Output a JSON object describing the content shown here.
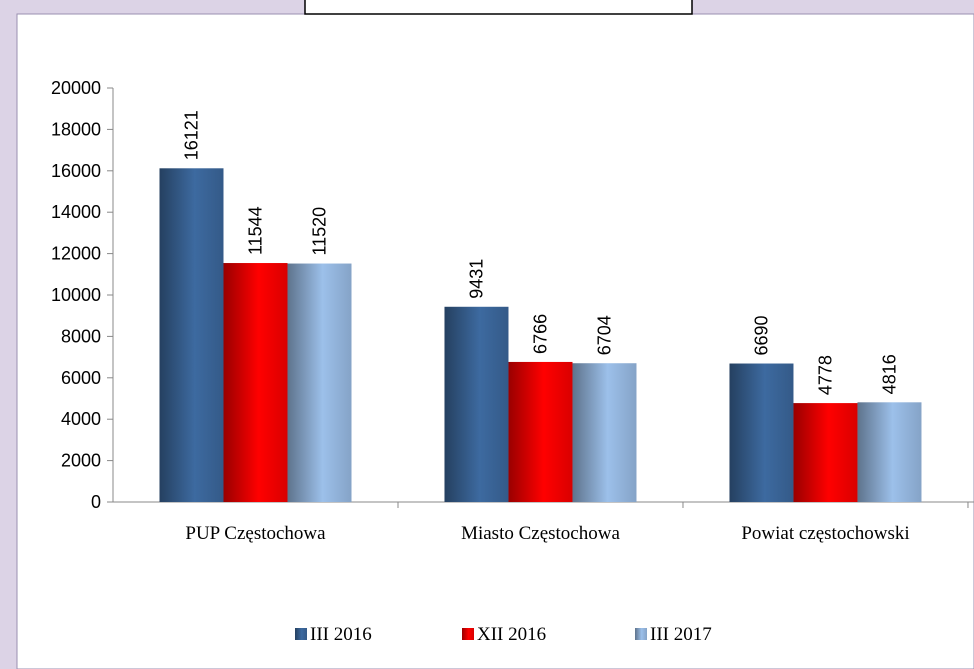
{
  "chart_data": {
    "type": "bar",
    "categories": [
      "PUP Częstochowa",
      "Miasto Częstochowa",
      "Powiat częstochowski"
    ],
    "series": [
      {
        "name": "III 2016",
        "color": "#3d6aa0",
        "values": [
          16121,
          9431,
          6690
        ]
      },
      {
        "name": "XII 2016",
        "color": "#ff0000",
        "values": [
          11544,
          6766,
          4778
        ]
      },
      {
        "name": "III 2017",
        "color": "#9cc0ea",
        "values": [
          11520,
          6704,
          4816
        ]
      }
    ],
    "ylim": [
      0,
      20000
    ],
    "yticks": [
      0,
      2000,
      4000,
      6000,
      8000,
      10000,
      12000,
      14000,
      16000,
      18000,
      20000
    ],
    "grid": false,
    "legend": "bottom"
  }
}
